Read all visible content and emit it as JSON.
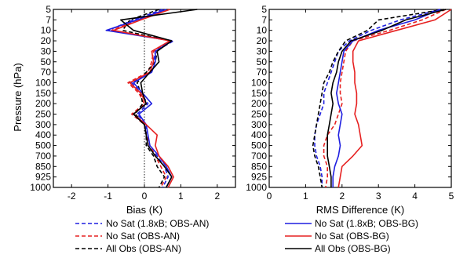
{
  "figure": {
    "ylabel": "Pressure (hPa)",
    "legend": [
      {
        "label": "No Sat (1.8xB; OBS-AN)",
        "color": "#1f1fe0",
        "dash": true
      },
      {
        "label": "No Sat (OBS-AN)",
        "color": "#e62020",
        "dash": true
      },
      {
        "label": "All Obs (OBS-AN)",
        "color": "#000000",
        "dash": true
      },
      {
        "label": "No Sat (1.8xB; OBS-BG)",
        "color": "#1f1fe0",
        "dash": false
      },
      {
        "label": "No Sat (OBS-BG)",
        "color": "#e62020",
        "dash": false
      },
      {
        "label": "All Obs (OBS-BG)",
        "color": "#000000",
        "dash": false
      }
    ]
  },
  "chart_data": [
    {
      "type": "line",
      "xlabel": "Bias (K)",
      "xlim": [
        -2.5,
        2.5
      ],
      "xticks": [
        "-2",
        "-1",
        "0",
        "1",
        "2"
      ],
      "zero_line": true,
      "ylabel": "Pressure (hPa)",
      "pressure_levels": [
        "5",
        "7",
        "10",
        "20",
        "30",
        "50",
        "70",
        "100",
        "150",
        "200",
        "250",
        "300",
        "400",
        "500",
        "700",
        "850",
        "925",
        "1000"
      ],
      "ytick_labels": [
        "5",
        "7",
        "10",
        "20",
        "30",
        "50",
        "70",
        "100",
        "150",
        "200",
        "250",
        "300",
        "400",
        "500",
        "700",
        "850",
        "925",
        "1000"
      ],
      "series": [
        {
          "name": "No Sat (1.8xB; OBS-AN)",
          "style": "dashed",
          "color": "#1f1fe0",
          "values": [
            0.5,
            -0.3,
            -1.0,
            0.8,
            0.3,
            0.25,
            0.15,
            -0.35,
            -0.1,
            0.1,
            -0.2,
            0.05,
            0.05,
            0.1,
            0.35,
            0.55,
            0.65,
            0.5
          ]
        },
        {
          "name": "No Sat (OBS-AN)",
          "style": "dashed",
          "color": "#e62020",
          "values": [
            0.6,
            -0.2,
            -0.9,
            0.75,
            0.25,
            0.2,
            0.1,
            -0.45,
            -0.15,
            0.0,
            -0.35,
            0.0,
            0.05,
            0.15,
            0.3,
            0.45,
            0.6,
            0.45
          ]
        },
        {
          "name": "All Obs (OBS-AN)",
          "style": "dashed",
          "color": "#000000",
          "values": [
            0.4,
            -0.4,
            -0.6,
            0.7,
            0.35,
            0.3,
            0.05,
            -0.2,
            -0.1,
            -0.05,
            -0.25,
            0.0,
            0.05,
            0.05,
            0.25,
            0.35,
            0.55,
            0.4
          ]
        },
        {
          "name": "No Sat (1.8xB; OBS-BG)",
          "style": "solid",
          "color": "#1f1fe0",
          "values": [
            0.6,
            -0.2,
            -1.05,
            0.75,
            0.3,
            0.3,
            0.2,
            -0.3,
            -0.05,
            0.2,
            -0.15,
            0.05,
            0.1,
            0.15,
            0.4,
            0.6,
            0.75,
            0.6
          ]
        },
        {
          "name": "No Sat (OBS-BG)",
          "style": "solid",
          "color": "#e62020",
          "values": [
            0.7,
            -0.1,
            -0.85,
            0.7,
            0.2,
            0.25,
            0.15,
            -0.4,
            -0.1,
            0.05,
            -0.3,
            0.05,
            0.35,
            0.3,
            0.4,
            0.65,
            0.8,
            0.65
          ]
        },
        {
          "name": "All Obs (OBS-BG)",
          "style": "solid",
          "color": "#000000",
          "values": [
            1.45,
            -0.65,
            -0.3,
            0.75,
            0.35,
            0.4,
            0.15,
            -0.1,
            -0.05,
            0.05,
            -0.3,
            0.0,
            0.05,
            0.1,
            0.3,
            0.55,
            0.75,
            0.6
          ]
        }
      ]
    },
    {
      "type": "line",
      "xlabel": "RMS Difference (K)",
      "xlim": [
        0,
        5
      ],
      "xticks": [
        "0",
        "1",
        "2",
        "3",
        "4",
        "5"
      ],
      "zero_line": false,
      "ylabel": "",
      "pressure_levels": [
        "5",
        "7",
        "10",
        "20",
        "30",
        "50",
        "70",
        "100",
        "150",
        "200",
        "250",
        "300",
        "400",
        "500",
        "700",
        "850",
        "925",
        "1000"
      ],
      "ytick_labels": [
        "5",
        "7",
        "10",
        "20",
        "30",
        "50",
        "70",
        "100",
        "150",
        "200",
        "250",
        "300",
        "400",
        "500",
        "700",
        "850",
        "925",
        "1000"
      ],
      "series": [
        {
          "name": "No Sat (1.8xB; OBS-AN)",
          "style": "dashed",
          "color": "#1f1fe0",
          "values": [
            4.7,
            3.6,
            2.8,
            2.2,
            1.9,
            1.8,
            1.7,
            1.6,
            1.5,
            1.5,
            1.4,
            1.3,
            1.25,
            1.25,
            1.3,
            1.4,
            1.45,
            1.45
          ]
        },
        {
          "name": "No Sat (OBS-AN)",
          "style": "dashed",
          "color": "#e62020",
          "values": [
            4.85,
            4.2,
            3.3,
            2.3,
            2.1,
            2.05,
            2.0,
            1.95,
            1.95,
            2.0,
            1.9,
            1.8,
            1.6,
            1.5,
            1.5,
            1.6,
            1.6,
            1.55
          ]
        },
        {
          "name": "All Obs (OBS-AN)",
          "style": "dashed",
          "color": "#000000",
          "values": [
            4.8,
            3.0,
            2.7,
            2.1,
            1.9,
            1.75,
            1.65,
            1.5,
            1.45,
            1.4,
            1.35,
            1.3,
            1.25,
            1.2,
            1.25,
            1.35,
            1.4,
            1.45
          ]
        },
        {
          "name": "No Sat (1.8xB; OBS-BG)",
          "style": "solid",
          "color": "#1f1fe0",
          "values": [
            4.7,
            4.0,
            3.0,
            2.3,
            2.05,
            2.0,
            1.95,
            1.9,
            1.85,
            1.9,
            2.0,
            1.95,
            1.9,
            1.95,
            1.9,
            1.8,
            1.75,
            1.75
          ]
        },
        {
          "name": "No Sat (OBS-BG)",
          "style": "solid",
          "color": "#e62020",
          "values": [
            5.0,
            4.55,
            3.5,
            2.45,
            2.3,
            2.3,
            2.35,
            2.35,
            2.4,
            2.4,
            2.35,
            2.45,
            2.5,
            2.55,
            2.3,
            2.0,
            1.95,
            1.9
          ]
        },
        {
          "name": "All Obs (OBS-BG)",
          "style": "solid",
          "color": "#000000",
          "values": [
            4.85,
            3.75,
            3.1,
            2.25,
            2.0,
            1.9,
            1.85,
            1.75,
            1.7,
            1.75,
            1.7,
            1.65,
            1.6,
            1.6,
            1.6,
            1.65,
            1.7,
            1.7
          ]
        }
      ]
    }
  ]
}
